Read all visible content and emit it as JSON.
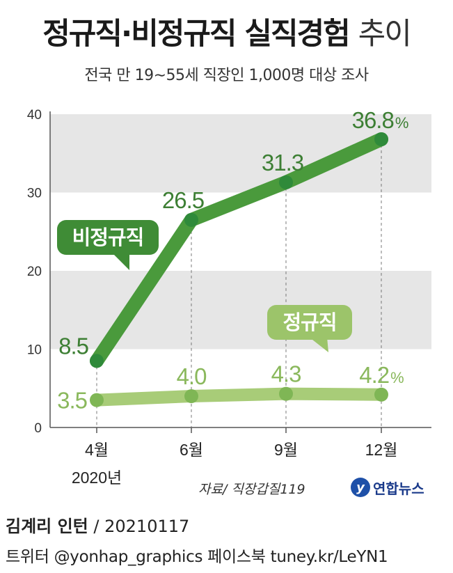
{
  "header": {
    "title_main": "정규직·비정규직 실직경험",
    "title_light": "추이",
    "subtitle": "전국 만 19∼55세 직장인 1,000명 대상 조사"
  },
  "chart_data": {
    "type": "line",
    "categories": [
      "4월",
      "6월",
      "9월",
      "12월"
    ],
    "year_label": "2020년",
    "ylim": [
      0,
      40
    ],
    "yticks": [
      0,
      10,
      20,
      30,
      40
    ],
    "unit": "%",
    "grid_bands": true,
    "series": [
      {
        "name": "비정규직",
        "values": [
          8.5,
          26.5,
          31.3,
          36.8
        ],
        "labels": [
          "8.5",
          "26.5",
          "31.3",
          "36.8"
        ],
        "color": "#4a9a3c",
        "label_color": "#3d7f34",
        "dot_color": "#2f8a3a"
      },
      {
        "name": "정규직",
        "values": [
          3.5,
          4.0,
          4.3,
          4.2
        ],
        "labels": [
          "3.5",
          "4.0",
          "4.3",
          "4.2"
        ],
        "color": "#a8cc78",
        "label_color": "#8ab85c",
        "dot_color": "#7fb655"
      }
    ]
  },
  "footer": {
    "source": "자료/ 직장갑질119",
    "logo_text": "연합뉴스",
    "author": "김계리 인턴",
    "date": " / 20210117",
    "social": "트위터 @yonhap_graphics  페이스북 tuney.kr/LeYN1"
  }
}
